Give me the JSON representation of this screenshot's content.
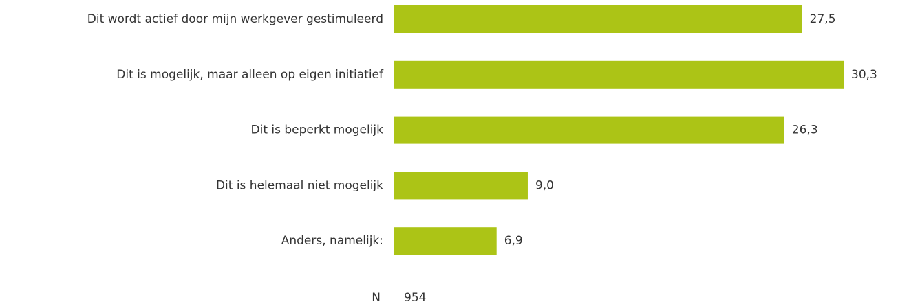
{
  "chart_data": {
    "type": "bar",
    "orientation": "horizontal",
    "categories": [
      "Dit wordt actief door mijn werkgever gestimuleerd",
      "Dit is mogelijk, maar alleen op eigen initiatief",
      "Dit is beperkt mogelijk",
      "Dit is helemaal niet mogelijk",
      "Anders, namelijk:"
    ],
    "values": [
      27.5,
      30.3,
      26.3,
      9.0,
      6.9
    ],
    "value_labels": [
      "27,5",
      "30,3",
      "26,3",
      "9,0",
      "6,9"
    ],
    "color": "#acc416",
    "n_label": "N",
    "n": 954
  }
}
